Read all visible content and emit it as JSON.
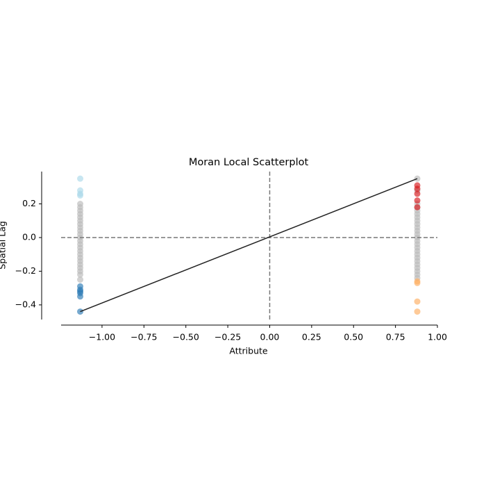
{
  "chart_data": {
    "type": "scatter",
    "title": "Moran Local Scatterplot",
    "x_label": "Attribute",
    "y_label": "Spatial Lag",
    "xlim": [
      -1.244,
      1.0
    ],
    "ylim": [
      -0.487,
      0.392
    ],
    "xticks": [
      {
        "value": -1,
        "label": "−1.00"
      },
      {
        "value": -0.75,
        "label": "−0.75"
      },
      {
        "value": -0.5,
        "label": "−0.50"
      },
      {
        "value": -0.25,
        "label": "−0.25"
      },
      {
        "value": 0,
        "label": "0.00"
      },
      {
        "value": 0.25,
        "label": "0.25"
      },
      {
        "value": 0.5,
        "label": "0.50"
      },
      {
        "value": 0.75,
        "label": "0.75"
      },
      {
        "value": 1,
        "label": "1.00"
      }
    ],
    "yticks": [
      {
        "value": -0.4,
        "label": "−0.4"
      },
      {
        "value": -0.2,
        "label": "−0.2"
      },
      {
        "value": 0,
        "label": "0.0"
      },
      0.2
    ],
    "vline": 0,
    "hline": 0,
    "fit": {
      "color": "#222222",
      "x": [
        -1.13,
        0.88
      ],
      "y": [
        -0.44,
        0.35
      ]
    },
    "series": [
      {
        "color": "#bababa",
        "x": [
          -1.13,
          -1.13,
          -1.13,
          -1.13,
          -1.13,
          -1.13,
          -1.13,
          -1.13,
          -1.13,
          -1.13,
          -1.13,
          -1.13,
          -1.13,
          -1.13,
          -1.13,
          -1.13,
          -1.13,
          -1.13,
          -1.13,
          -1.13,
          -1.13,
          -1.13,
          -1.13,
          0.88,
          0.88,
          0.88,
          0.88,
          0.88,
          0.88,
          0.88,
          0.88,
          0.88,
          0.88,
          0.88,
          0.88,
          0.88,
          0.88,
          0.88,
          0.88,
          0.88,
          0.88,
          0.88,
          0.88,
          0.88,
          0.88,
          0.88,
          0.88,
          0.88
        ],
        "y": [
          0.2,
          0.18,
          0.16,
          0.14,
          0.12,
          0.1,
          0.08,
          0.06,
          0.04,
          0.02,
          0,
          -0.02,
          -0.04,
          -0.06,
          -0.08,
          -0.1,
          -0.12,
          -0.14,
          -0.16,
          -0.18,
          -0.2,
          -0.22,
          -0.25,
          0.35,
          0.28,
          0.2,
          0.18,
          0.16,
          0.14,
          0.12,
          0.1,
          0.08,
          0.06,
          0.04,
          0.02,
          0,
          -0.02,
          -0.04,
          -0.06,
          -0.08,
          -0.1,
          -0.12,
          -0.14,
          -0.16,
          -0.18,
          -0.2,
          -0.22,
          -0.24
        ]
      },
      {
        "color": "#abd9e9",
        "x": [
          -1.13,
          -1.13,
          -1.13,
          -1.13
        ],
        "y": [
          0.35,
          0.28,
          0.26,
          0.25
        ]
      },
      {
        "color": "#2c7bb6",
        "x": [
          -1.13,
          -1.13,
          -1.13,
          -1.13,
          -1.13,
          -1.13
        ],
        "y": [
          -0.29,
          -0.31,
          -0.32,
          -0.33,
          -0.35,
          -0.44
        ]
      },
      {
        "color": "#d7191c",
        "x": [
          0.88,
          0.88,
          0.88,
          0.88,
          0.88
        ],
        "y": [
          0.31,
          0.29,
          0.26,
          0.22,
          0.18
        ]
      },
      {
        "color": "#fdae61",
        "x": [
          0.88,
          0.88,
          0.88,
          0.88
        ],
        "y": [
          -0.26,
          -0.27,
          -0.38,
          -0.44
        ]
      }
    ]
  }
}
